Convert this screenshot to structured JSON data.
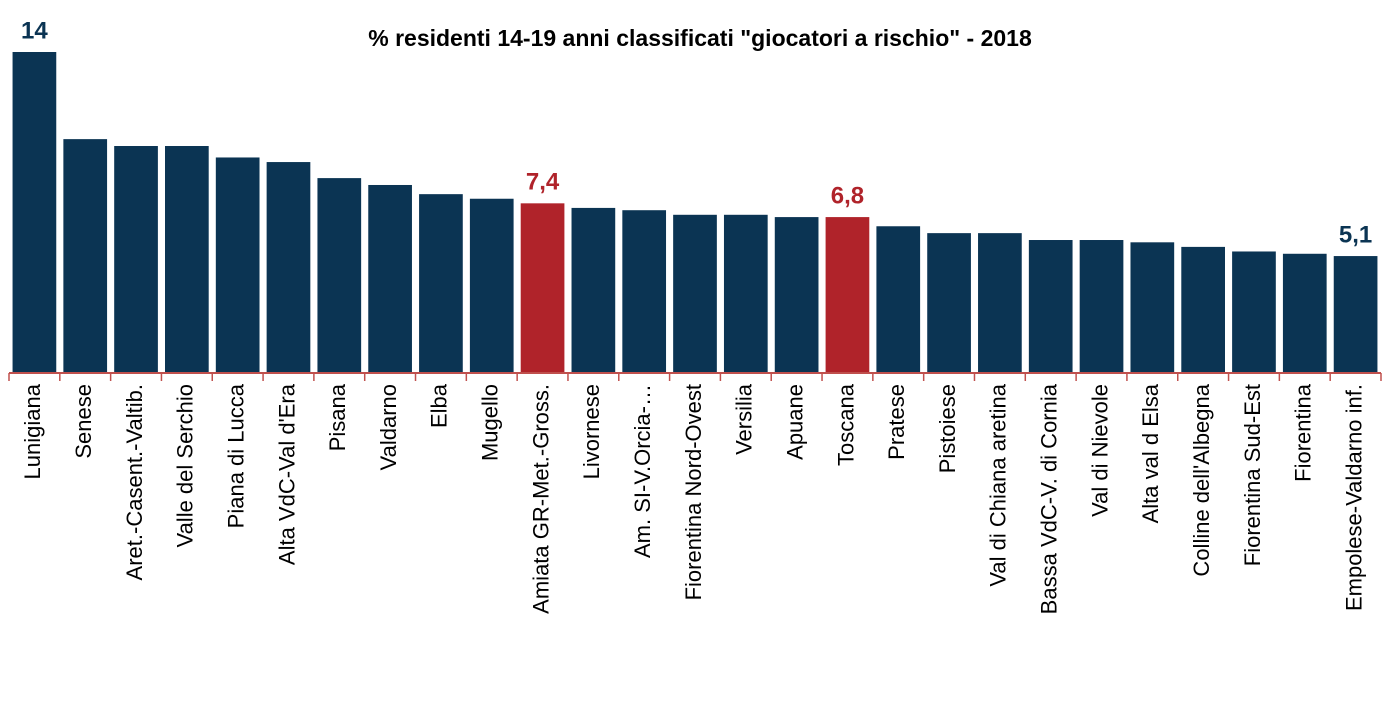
{
  "chart_data": {
    "type": "bar",
    "title": "% residenti 14-19 anni classificati \"giocatori a rischio\" - 2018",
    "categories": [
      "Lunigiana",
      "Senese",
      "Aret.-Casent.-Valtib.",
      "Valle del Serchio",
      "Piana di Lucca",
      "Alta VdC-Val d'Era",
      "Pisana",
      "Valdarno",
      "Elba",
      "Mugello",
      "Amiata GR-Met.-Gross.",
      "Livornese",
      "Am. SI-V.Orcia-…",
      "Fiorentina Nord-Ovest",
      "Versilia",
      "Apuane",
      "Toscana",
      "Pratese",
      "Pistoiese",
      "Val di Chiana aretina",
      "Bassa VdC-V. di Cornia",
      "Val di Nievole",
      "Alta val d Elsa",
      "Colline dell'Albegna",
      "Fiorentina Sud-Est",
      "Fiorentina",
      "Empolese-Valdarno inf."
    ],
    "values": [
      14,
      10.2,
      9.9,
      9.9,
      9.4,
      9.2,
      8.5,
      8.2,
      7.8,
      7.6,
      7.4,
      7.2,
      7.1,
      6.9,
      6.9,
      6.8,
      6.8,
      6.4,
      6.1,
      6.1,
      5.8,
      5.8,
      5.7,
      5.5,
      5.3,
      5.2,
      5.1
    ],
    "value_labels": [
      "14",
      null,
      null,
      null,
      null,
      null,
      null,
      null,
      null,
      null,
      "7,4",
      null,
      null,
      null,
      null,
      null,
      "6,8",
      null,
      null,
      null,
      null,
      null,
      null,
      null,
      null,
      null,
      "5,1"
    ],
    "colors": [
      "#0b3453",
      "#0b3453",
      "#0b3453",
      "#0b3453",
      "#0b3453",
      "#0b3453",
      "#0b3453",
      "#0b3453",
      "#0b3453",
      "#0b3453",
      "#b0232a",
      "#0b3453",
      "#0b3453",
      "#0b3453",
      "#0b3453",
      "#0b3453",
      "#b0232a",
      "#0b3453",
      "#0b3453",
      "#0b3453",
      "#0b3453",
      "#0b3453",
      "#0b3453",
      "#0b3453",
      "#0b3453",
      "#0b3453",
      "#0b3453"
    ],
    "ylim": [
      0,
      14
    ]
  }
}
